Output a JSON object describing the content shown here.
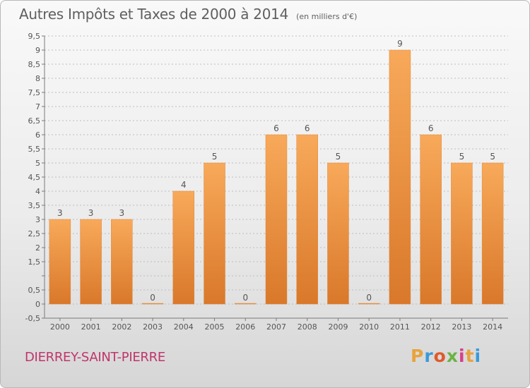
{
  "header": {
    "title": "Autres Impôts et Taxes de 2000 à 2014",
    "unit": "(en milliers d'€)"
  },
  "footer": {
    "commune": "DIERREY-SAINT-PIERRE",
    "logo": {
      "letters": [
        "P",
        "r",
        "o",
        "x",
        "i",
        "t",
        "i"
      ],
      "colors": [
        "#e8a33d",
        "#3a9ad9",
        "#e05a2b",
        "#6ab344",
        "#d6408a",
        "#e8a33d",
        "#3a9ad9"
      ]
    }
  },
  "chart_data": {
    "type": "bar",
    "categories": [
      "2000",
      "2001",
      "2002",
      "2003",
      "2004",
      "2005",
      "2006",
      "2007",
      "2008",
      "2009",
      "2010",
      "2011",
      "2012",
      "2013",
      "2014"
    ],
    "values": [
      3,
      3,
      3,
      0,
      4,
      5,
      0,
      6,
      6,
      5,
      0,
      9,
      6,
      5,
      5
    ],
    "data_labels": [
      "3",
      "3",
      "3",
      "0",
      "4",
      "5",
      "0",
      "6",
      "6",
      "5",
      "0",
      "9",
      "6",
      "5",
      "5"
    ],
    "yticks": [
      -0.5,
      0,
      0.5,
      1,
      1.5,
      2,
      2.5,
      3,
      3.5,
      4,
      4.5,
      5,
      5.5,
      6,
      6.5,
      7,
      7.5,
      8,
      8.5,
      9,
      9.5
    ],
    "ytick_labels": [
      "-0,5",
      "0",
      "0,5",
      "",
      "1,5",
      "2",
      "2,5",
      "3",
      "3,5",
      "4",
      "4,5",
      "5",
      "5,5",
      "6",
      "6,5",
      "7",
      "7,5",
      "8",
      "8,5",
      "9",
      "9,5"
    ],
    "ylim": [
      -0.5,
      9.5
    ],
    "grid": true,
    "colors": {
      "bar_light": "#f8a95a",
      "bar_dark": "#d9782a",
      "bar_edge": "#e0893a",
      "grid": "#bdbdbd",
      "axis": "#7a7a7a",
      "text": "#555555"
    }
  }
}
